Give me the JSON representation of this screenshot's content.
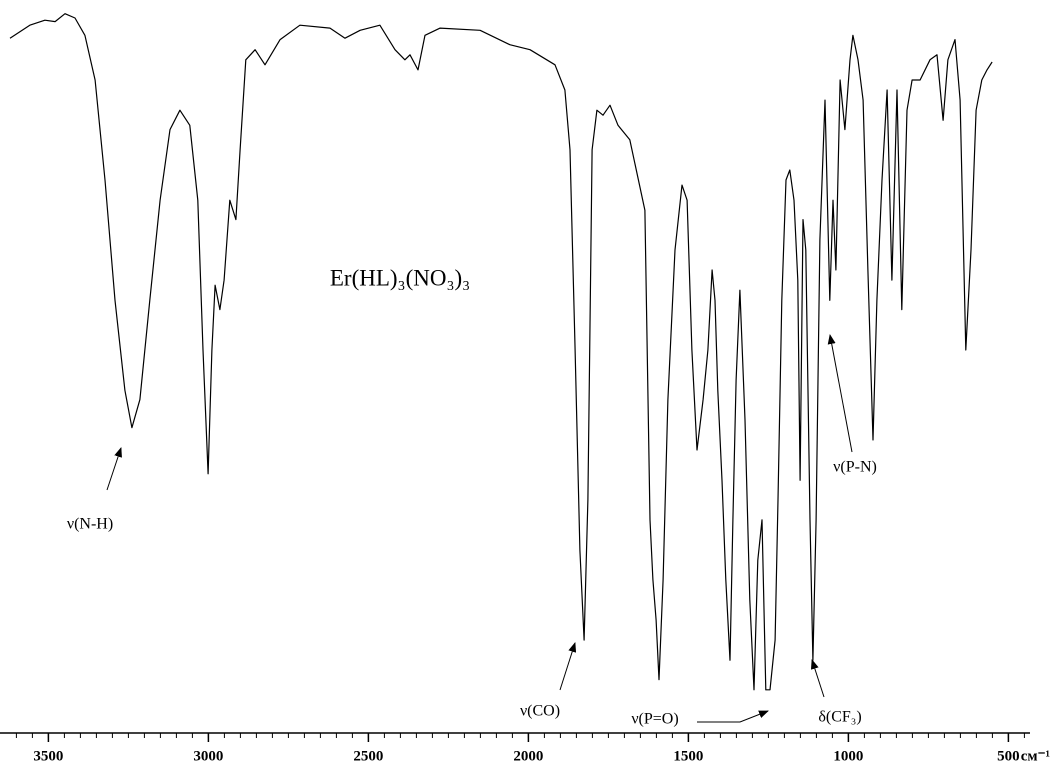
{
  "chart_data": {
    "type": "line",
    "inset_label": "Er(HL)₃(NO₃)₃",
    "annotations": [
      "ν(N-H)",
      "ν(CO)",
      "ν(P=O)",
      "δ(CF₃)",
      "ν(P-N)"
    ],
    "xlabel": "см⁻¹",
    "color": "#000000",
    "xlim": [
      3620,
      440
    ],
    "ylim": [
      0,
      100
    ],
    "xticks": [
      3500,
      3000,
      2500,
      2000,
      1500,
      1000,
      500
    ],
    "xminor_step": 50,
    "x": [
      3620,
      3558,
      3511,
      3479,
      3448,
      3417,
      3386,
      3354,
      3323,
      3292,
      3261,
      3239,
      3214,
      3183,
      3151,
      3120,
      3089,
      3058,
      3033,
      3017,
      3001,
      2989,
      2979,
      2964,
      2951,
      2933,
      2914,
      2901,
      2883,
      2854,
      2823,
      2776,
      2714,
      2620,
      2573,
      2526,
      2464,
      2417,
      2386,
      2370,
      2345,
      2323,
      2276,
      2151,
      2058,
      1995,
      1917,
      1886,
      1870,
      1854,
      1839,
      1826,
      1814,
      1801,
      1786,
      1767,
      1745,
      1720,
      1683,
      1636,
      1620,
      1611,
      1601,
      1592,
      1579,
      1564,
      1542,
      1520,
      1504,
      1489,
      1473,
      1454,
      1439,
      1426,
      1417,
      1408,
      1395,
      1383,
      1370,
      1361,
      1351,
      1339,
      1323,
      1308,
      1295,
      1283,
      1270,
      1258,
      1245,
      1229,
      1220,
      1208,
      1195,
      1183,
      1170,
      1158,
      1151,
      1142,
      1133,
      1120,
      1111,
      1101,
      1089,
      1073,
      1058,
      1048,
      1039,
      1026,
      1011,
      995,
      986,
      970,
      954,
      939,
      923,
      911,
      895,
      879,
      864,
      848,
      833,
      817,
      801,
      776,
      745,
      723,
      704,
      689,
      667,
      651,
      633,
      617,
      601,
      583,
      567,
      551
    ],
    "values": [
      96.5,
      98.3,
      99.0,
      98.8,
      99.9,
      99.3,
      96.9,
      90.7,
      76.8,
      60.1,
      47.6,
      42.4,
      46.3,
      60.1,
      74.0,
      83.8,
      86.5,
      84.4,
      74.0,
      53.2,
      36.0,
      53.2,
      62.2,
      58.8,
      62.9,
      74.0,
      71.3,
      81.0,
      93.5,
      94.9,
      92.8,
      96.3,
      98.3,
      97.9,
      96.5,
      97.6,
      98.3,
      94.9,
      93.5,
      94.2,
      92.1,
      96.9,
      97.9,
      97.6,
      95.6,
      94.9,
      92.8,
      89.3,
      81.0,
      53.2,
      25.4,
      12.9,
      32.4,
      81.0,
      86.5,
      85.8,
      87.2,
      84.4,
      82.4,
      72.6,
      29.6,
      21.3,
      15.7,
      7.4,
      21.3,
      46.3,
      67.1,
      76.1,
      74.0,
      53.2,
      39.3,
      46.3,
      53.2,
      64.3,
      60.1,
      47.6,
      35.1,
      21.3,
      10.1,
      29.6,
      49.0,
      61.5,
      43.5,
      18.5,
      6.0,
      24.0,
      29.6,
      6.0,
      6.0,
      12.9,
      32.4,
      60.1,
      76.8,
      78.2,
      74.0,
      62.9,
      35.1,
      71.3,
      67.1,
      29.6,
      10.1,
      29.6,
      68.5,
      87.9,
      60.1,
      74.0,
      64.3,
      90.7,
      83.8,
      93.5,
      96.9,
      93.5,
      87.9,
      64.3,
      40.7,
      60.1,
      76.8,
      89.3,
      62.9,
      89.3,
      58.8,
      86.5,
      90.7,
      90.7,
      93.5,
      94.2,
      85.1,
      93.5,
      96.3,
      87.9,
      53.2,
      67.1,
      86.5,
      90.7,
      92.1,
      93.2
    ]
  }
}
